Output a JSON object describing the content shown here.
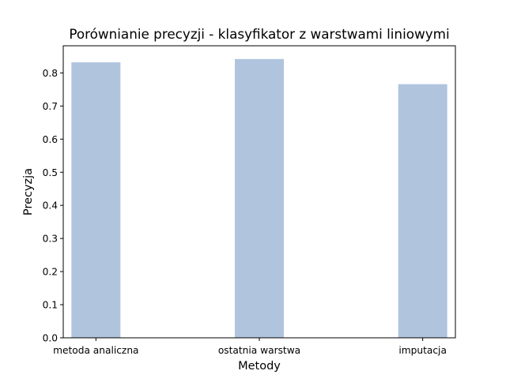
{
  "chart_data": {
    "type": "bar",
    "title": "Porównianie precyzji - klasyfikator z warstwami liniowymi",
    "xlabel": "Metody",
    "ylabel": "Precyzja",
    "categories": [
      "metoda analiczna",
      "ostatnia warstwa",
      "imputacja"
    ],
    "values": [
      0.832,
      0.842,
      0.766
    ],
    "ylim": [
      0,
      0.882
    ],
    "yticks": [
      0.0,
      0.1,
      0.2,
      0.3,
      0.4,
      0.5,
      0.6,
      0.7,
      0.8
    ],
    "bar_color": "#b0c4de",
    "grid": false,
    "legend": "none"
  }
}
